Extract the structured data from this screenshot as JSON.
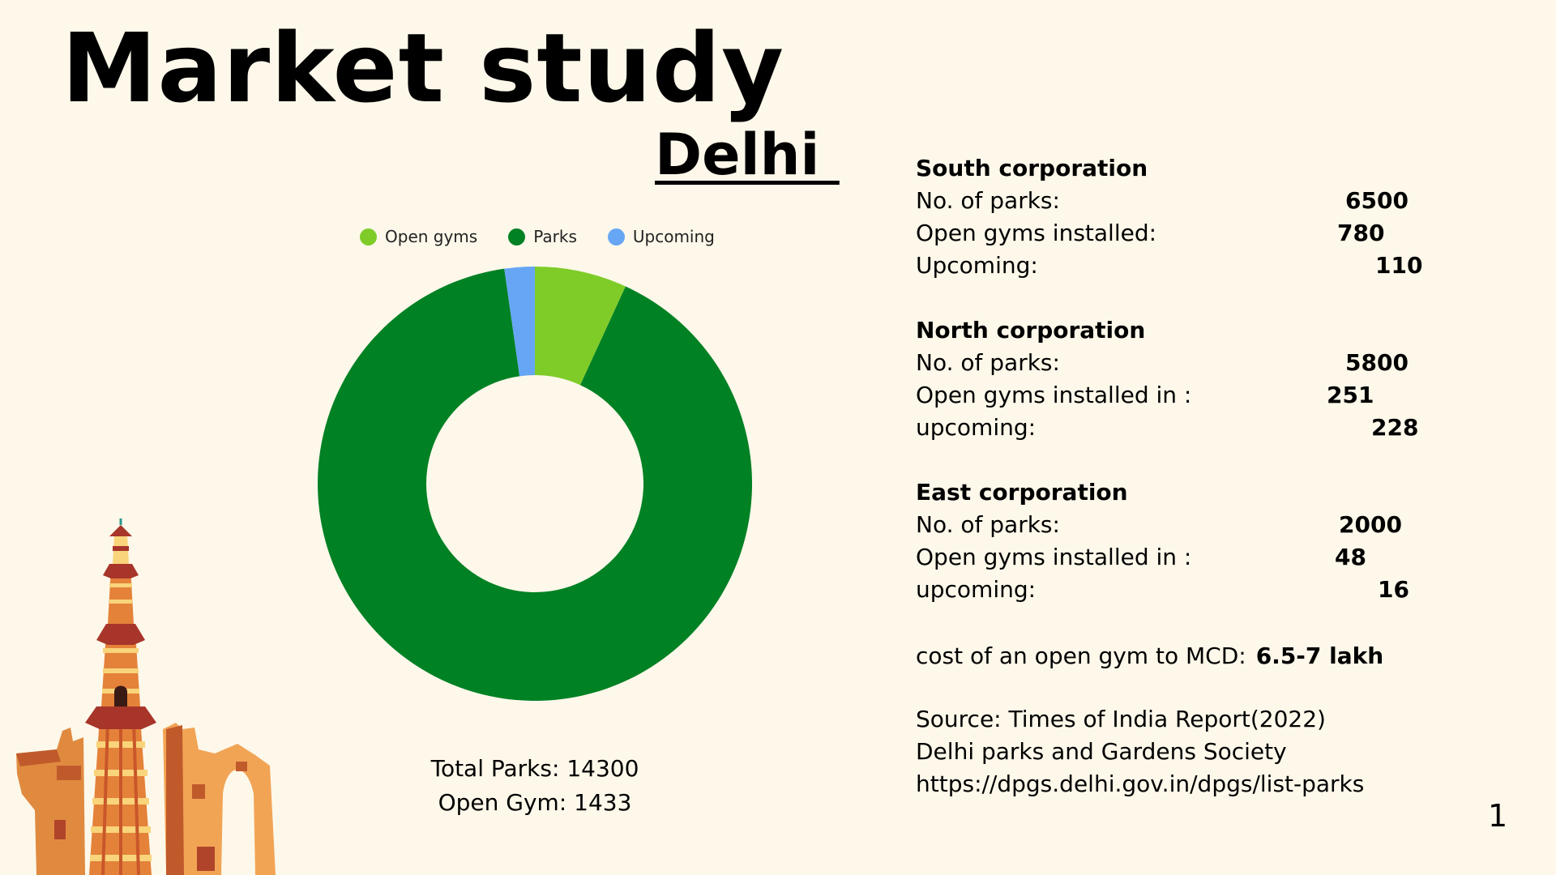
{
  "page": {
    "title": "Market study",
    "subtitle": "Delhi ",
    "page_number": "1"
  },
  "colors": {
    "background": "#fdf8ea",
    "open_gyms": "#7fcc29",
    "parks": "#008124",
    "upcoming": "#66a6f5"
  },
  "chart_data": {
    "type": "pie",
    "style": "donut",
    "labels": [
      "Open gyms",
      "Parks",
      "Upcoming"
    ],
    "values": [
      1079,
      14300,
      354
    ],
    "colors": [
      "#7fcc29",
      "#008124",
      "#66a6f5"
    ],
    "legend_position": "top"
  },
  "totals": {
    "parks": "Total Parks: 14300",
    "gyms": "Open Gym: 1433"
  },
  "corporations": [
    {
      "name": "South corporation",
      "rows": [
        {
          "label": "No. of parks:",
          "value": "6500"
        },
        {
          "label": "Open gyms installed:",
          "value": "780"
        },
        {
          "label": "Upcoming:",
          "value": "110"
        }
      ]
    },
    {
      "name": "North corporation",
      "rows": [
        {
          "label": "No. of parks:",
          "value": "5800"
        },
        {
          "label": "Open gyms installed in :",
          "value": "251"
        },
        {
          "label": "upcoming:",
          "value": "228"
        }
      ]
    },
    {
      "name": "East corporation",
      "rows": [
        {
          "label": "No. of parks:",
          "value": "2000"
        },
        {
          "label": "Open gyms installed in :",
          "value": "48"
        },
        {
          "label": "upcoming:",
          "value": "16"
        }
      ]
    }
  ],
  "cost": {
    "label": "cost of an open gym to MCD:",
    "value": "6.5-7 lakh"
  },
  "source": {
    "line1": "Source: Times of India Report(2022)",
    "line2": "Delhi parks and Gardens Society",
    "line3": "https://dpgs.delhi.gov.in/dpgs/list-parks"
  }
}
